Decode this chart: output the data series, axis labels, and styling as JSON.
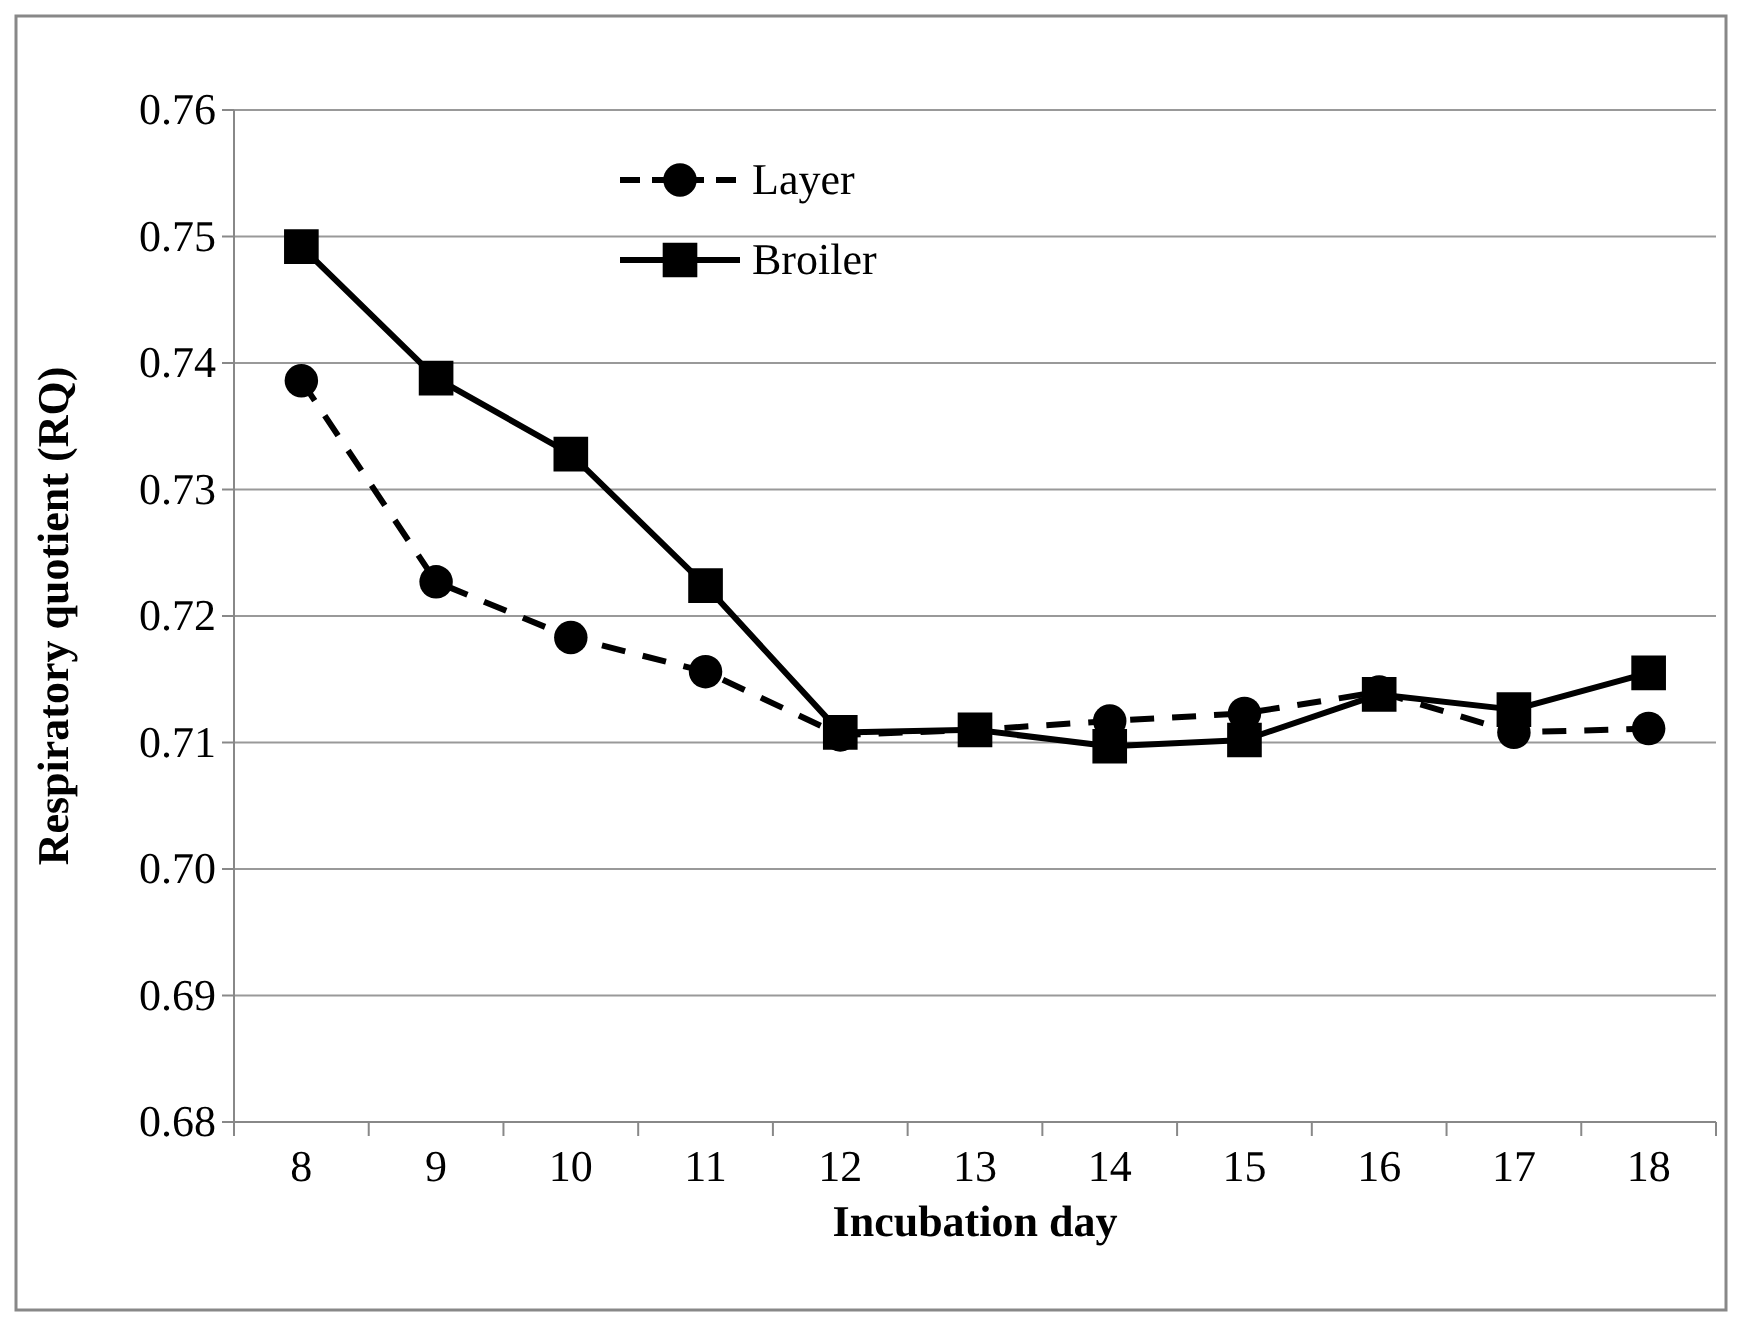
{
  "chart_data": {
    "type": "line",
    "xlabel": "Incubation day",
    "ylabel": "Respiratory quotient (RQ)",
    "categories": [
      "8",
      "9",
      "10",
      "11",
      "12",
      "13",
      "14",
      "15",
      "16",
      "17",
      "18"
    ],
    "series": [
      {
        "name": "Layer",
        "color": "#000000",
        "marker": "circle",
        "line_style": "dashed",
        "values": [
          0.7386,
          0.7227,
          0.7183,
          0.7156,
          0.7106,
          0.711,
          0.7117,
          0.7123,
          0.714,
          0.7108,
          0.7111
        ]
      },
      {
        "name": "Broiler",
        "color": "#000000",
        "marker": "square",
        "line_style": "solid",
        "values": [
          0.7492,
          0.7388,
          0.7328,
          0.7224,
          0.7108,
          0.711,
          0.7097,
          0.7102,
          0.7138,
          0.7126,
          0.7155
        ]
      }
    ],
    "ylim": [
      0.68,
      0.76
    ],
    "yticks": [
      0.68,
      0.69,
      {
        "value": 0.7,
        "label": "0.70"
      },
      0.71,
      0.72,
      0.73,
      0.74,
      0.75,
      0.76
    ],
    "grid": "y",
    "legend": "top left"
  }
}
